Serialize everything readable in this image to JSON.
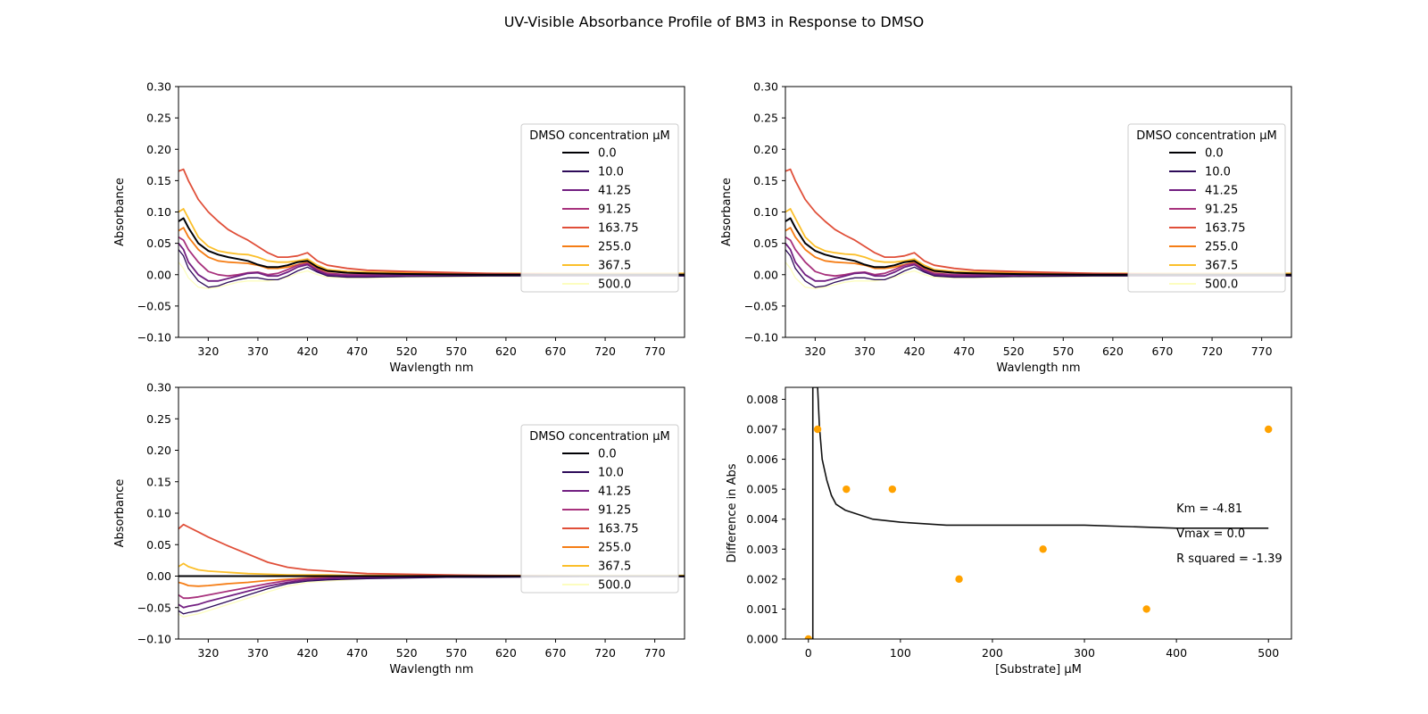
{
  "figure": {
    "title": "UV-Visible Absorbance Profile of BM3 in Response to DMSO"
  },
  "legend": {
    "title": "DMSO concentration µM",
    "entries": [
      "0.0",
      "10.0",
      "41.25",
      "91.25",
      "163.75",
      "255.0",
      "367.5",
      "500.0"
    ],
    "colors": [
      "#000004",
      "#2d0b59",
      "#721f81",
      "#a8327d",
      "#e04f39",
      "#f57d15",
      "#fbbf2a",
      "#fcfdbf"
    ]
  },
  "chart_data": [
    {
      "type": "line",
      "panel": "top-left",
      "xlabel": "Wavlength nm",
      "ylabel": "Absorbance",
      "xlim": [
        290,
        800
      ],
      "ylim": [
        -0.1,
        0.3
      ],
      "xticks": [
        "320",
        "370",
        "420",
        "470",
        "520",
        "570",
        "620",
        "670",
        "720",
        "770"
      ],
      "yticks": [
        "0.30",
        "0.25",
        "0.20",
        "0.15",
        "0.10",
        "0.05",
        "0.00",
        "−0.05",
        "−0.10"
      ],
      "legend_position": "center-right",
      "x": [
        290,
        295,
        300,
        310,
        320,
        330,
        340,
        350,
        360,
        370,
        380,
        390,
        400,
        410,
        420,
        430,
        440,
        460,
        480,
        520,
        600,
        700,
        800
      ],
      "series": [
        {
          "name": "0.0",
          "values": [
            0.085,
            0.09,
            0.075,
            0.05,
            0.038,
            0.032,
            0.028,
            0.025,
            0.022,
            0.016,
            0.012,
            0.012,
            0.015,
            0.02,
            0.022,
            0.012,
            0.006,
            0.003,
            0.002,
            0.001,
            0.0,
            0.0,
            0.0
          ]
        },
        {
          "name": "10.0",
          "values": [
            0.04,
            0.03,
            0.01,
            -0.01,
            -0.02,
            -0.018,
            -0.012,
            -0.008,
            -0.005,
            -0.005,
            -0.008,
            -0.008,
            -0.002,
            0.006,
            0.012,
            0.004,
            -0.002,
            -0.004,
            -0.004,
            -0.003,
            -0.002,
            -0.002,
            -0.002
          ]
        },
        {
          "name": "41.25",
          "values": [
            0.05,
            0.04,
            0.02,
            0.0,
            -0.01,
            -0.01,
            -0.006,
            -0.002,
            0.002,
            0.003,
            -0.002,
            -0.002,
            0.004,
            0.012,
            0.016,
            0.006,
            0.0,
            -0.002,
            -0.002,
            -0.001,
            0.0,
            0.0,
            0.0
          ]
        },
        {
          "name": "91.25",
          "values": [
            0.06,
            0.055,
            0.04,
            0.02,
            0.005,
            0.0,
            -0.002,
            0.0,
            0.003,
            0.004,
            0.0,
            0.002,
            0.008,
            0.015,
            0.018,
            0.008,
            0.002,
            0.0,
            0.0,
            0.0,
            0.0,
            0.0,
            0.0
          ]
        },
        {
          "name": "163.75",
          "values": [
            0.165,
            0.168,
            0.15,
            0.12,
            0.1,
            0.085,
            0.072,
            0.063,
            0.055,
            0.045,
            0.035,
            0.028,
            0.028,
            0.03,
            0.035,
            0.022,
            0.015,
            0.01,
            0.007,
            0.005,
            0.002,
            0.0,
            0.0
          ]
        },
        {
          "name": "255.0",
          "values": [
            0.07,
            0.075,
            0.06,
            0.04,
            0.028,
            0.022,
            0.02,
            0.019,
            0.018,
            0.015,
            0.01,
            0.01,
            0.012,
            0.016,
            0.02,
            0.01,
            0.005,
            0.003,
            0.002,
            0.002,
            0.001,
            0.0,
            0.0
          ]
        },
        {
          "name": "367.5",
          "values": [
            0.1,
            0.105,
            0.09,
            0.06,
            0.045,
            0.038,
            0.035,
            0.033,
            0.032,
            0.028,
            0.022,
            0.02,
            0.02,
            0.022,
            0.025,
            0.015,
            0.008,
            0.005,
            0.004,
            0.003,
            0.002,
            0.002,
            0.002
          ]
        },
        {
          "name": "500.0",
          "values": [
            0.02,
            0.01,
            -0.005,
            -0.02,
            -0.022,
            -0.02,
            -0.016,
            -0.012,
            -0.01,
            -0.01,
            -0.01,
            -0.008,
            -0.004,
            0.002,
            0.006,
            0.0,
            -0.004,
            -0.005,
            -0.005,
            -0.004,
            -0.003,
            -0.002,
            -0.002
          ]
        }
      ]
    },
    {
      "type": "line",
      "panel": "top-right",
      "xlabel": "Wavlength nm",
      "ylabel": "Absorbance",
      "xlim": [
        290,
        800
      ],
      "ylim": [
        -0.1,
        0.3
      ],
      "xticks": [
        "320",
        "370",
        "420",
        "470",
        "520",
        "570",
        "620",
        "670",
        "720",
        "770"
      ],
      "yticks": [
        "0.30",
        "0.25",
        "0.20",
        "0.15",
        "0.10",
        "0.05",
        "0.00",
        "−0.05",
        "−0.10"
      ],
      "legend_position": "center-right",
      "x": [
        290,
        295,
        300,
        310,
        320,
        330,
        340,
        350,
        360,
        370,
        380,
        390,
        400,
        410,
        420,
        430,
        440,
        460,
        480,
        520,
        600,
        700,
        800
      ],
      "series": [
        {
          "name": "0.0",
          "values": [
            0.085,
            0.09,
            0.075,
            0.05,
            0.038,
            0.032,
            0.028,
            0.025,
            0.022,
            0.016,
            0.012,
            0.012,
            0.015,
            0.02,
            0.022,
            0.012,
            0.006,
            0.003,
            0.002,
            0.001,
            0.0,
            0.0,
            0.0
          ]
        },
        {
          "name": "10.0",
          "values": [
            0.04,
            0.03,
            0.01,
            -0.01,
            -0.02,
            -0.018,
            -0.012,
            -0.008,
            -0.005,
            -0.005,
            -0.008,
            -0.008,
            -0.002,
            0.006,
            0.012,
            0.004,
            -0.002,
            -0.004,
            -0.004,
            -0.003,
            -0.002,
            -0.002,
            -0.002
          ]
        },
        {
          "name": "41.25",
          "values": [
            0.05,
            0.04,
            0.02,
            0.0,
            -0.01,
            -0.01,
            -0.006,
            -0.002,
            0.002,
            0.003,
            -0.002,
            -0.002,
            0.004,
            0.012,
            0.016,
            0.006,
            0.0,
            -0.002,
            -0.002,
            -0.001,
            0.0,
            0.0,
            0.0
          ]
        },
        {
          "name": "91.25",
          "values": [
            0.06,
            0.055,
            0.04,
            0.02,
            0.005,
            0.0,
            -0.002,
            0.0,
            0.003,
            0.004,
            0.0,
            0.002,
            0.008,
            0.015,
            0.018,
            0.008,
            0.002,
            0.0,
            0.0,
            0.0,
            0.0,
            0.0,
            0.0
          ]
        },
        {
          "name": "163.75",
          "values": [
            0.165,
            0.168,
            0.15,
            0.12,
            0.1,
            0.085,
            0.072,
            0.063,
            0.055,
            0.045,
            0.035,
            0.028,
            0.028,
            0.03,
            0.035,
            0.022,
            0.015,
            0.01,
            0.007,
            0.005,
            0.002,
            0.0,
            0.0
          ]
        },
        {
          "name": "255.0",
          "values": [
            0.07,
            0.075,
            0.06,
            0.04,
            0.028,
            0.022,
            0.02,
            0.019,
            0.018,
            0.015,
            0.01,
            0.01,
            0.012,
            0.016,
            0.02,
            0.01,
            0.005,
            0.003,
            0.002,
            0.002,
            0.001,
            0.0,
            0.0
          ]
        },
        {
          "name": "367.5",
          "values": [
            0.1,
            0.105,
            0.09,
            0.06,
            0.045,
            0.038,
            0.035,
            0.033,
            0.032,
            0.028,
            0.022,
            0.02,
            0.02,
            0.022,
            0.025,
            0.015,
            0.008,
            0.005,
            0.004,
            0.003,
            0.002,
            0.002,
            0.002
          ]
        },
        {
          "name": "500.0",
          "values": [
            0.02,
            0.01,
            -0.005,
            -0.02,
            -0.022,
            -0.02,
            -0.016,
            -0.012,
            -0.01,
            -0.01,
            -0.01,
            -0.008,
            -0.004,
            0.002,
            0.006,
            0.0,
            -0.004,
            -0.005,
            -0.005,
            -0.004,
            -0.003,
            -0.002,
            -0.002
          ]
        }
      ]
    },
    {
      "type": "line",
      "panel": "bottom-left",
      "xlabel": "Wavlength nm",
      "ylabel": "Absorbance",
      "xlim": [
        290,
        800
      ],
      "ylim": [
        -0.1,
        0.3
      ],
      "xticks": [
        "320",
        "370",
        "420",
        "470",
        "520",
        "570",
        "620",
        "670",
        "720",
        "770"
      ],
      "yticks": [
        "0.30",
        "0.25",
        "0.20",
        "0.15",
        "0.10",
        "0.05",
        "0.00",
        "−0.05",
        "−0.10"
      ],
      "legend_position": "center-right",
      "x": [
        290,
        295,
        300,
        310,
        320,
        340,
        360,
        380,
        400,
        420,
        440,
        460,
        480,
        520,
        560,
        600,
        700,
        800
      ],
      "series": [
        {
          "name": "0.0",
          "values": [
            0.0,
            0.0,
            0.0,
            0.0,
            0.0,
            0.0,
            0.0,
            0.0,
            0.0,
            0.0,
            0.0,
            0.0,
            0.0,
            0.0,
            0.0,
            0.0,
            0.0,
            0.0
          ]
        },
        {
          "name": "10.0",
          "values": [
            -0.055,
            -0.06,
            -0.058,
            -0.055,
            -0.05,
            -0.04,
            -0.03,
            -0.02,
            -0.012,
            -0.008,
            -0.006,
            -0.005,
            -0.004,
            -0.003,
            -0.002,
            -0.002,
            -0.001,
            -0.001
          ]
        },
        {
          "name": "41.25",
          "values": [
            -0.045,
            -0.05,
            -0.048,
            -0.045,
            -0.04,
            -0.032,
            -0.024,
            -0.016,
            -0.01,
            -0.006,
            -0.004,
            -0.003,
            -0.003,
            -0.002,
            -0.001,
            -0.001,
            0.0,
            0.0
          ]
        },
        {
          "name": "91.25",
          "values": [
            -0.03,
            -0.035,
            -0.035,
            -0.033,
            -0.03,
            -0.024,
            -0.018,
            -0.012,
            -0.007,
            -0.004,
            -0.003,
            -0.002,
            -0.002,
            -0.001,
            -0.001,
            0.0,
            0.0,
            0.0
          ]
        },
        {
          "name": "163.75",
          "values": [
            0.075,
            0.082,
            0.078,
            0.07,
            0.062,
            0.048,
            0.035,
            0.022,
            0.014,
            0.01,
            0.008,
            0.006,
            0.004,
            0.003,
            0.002,
            0.001,
            0.0,
            0.0
          ]
        },
        {
          "name": "255.0",
          "values": [
            -0.01,
            -0.012,
            -0.015,
            -0.016,
            -0.015,
            -0.012,
            -0.01,
            -0.007,
            -0.005,
            -0.003,
            -0.002,
            -0.002,
            -0.001,
            -0.001,
            0.0,
            0.0,
            0.0,
            0.0
          ]
        },
        {
          "name": "367.5",
          "values": [
            0.015,
            0.02,
            0.015,
            0.01,
            0.008,
            0.006,
            0.004,
            0.003,
            0.002,
            0.002,
            0.002,
            0.001,
            0.001,
            0.001,
            0.001,
            0.001,
            0.001,
            0.001
          ]
        },
        {
          "name": "500.0",
          "values": [
            -0.06,
            -0.065,
            -0.063,
            -0.06,
            -0.055,
            -0.045,
            -0.035,
            -0.025,
            -0.016,
            -0.01,
            -0.008,
            -0.006,
            -0.004,
            -0.003,
            -0.002,
            -0.001,
            0.0,
            0.0
          ]
        }
      ]
    },
    {
      "type": "scatter",
      "panel": "bottom-right",
      "xlabel": "[Substrate] µM",
      "ylabel": "Difference in Abs",
      "xlim": [
        -25,
        525
      ],
      "ylim": [
        0,
        0.0084
      ],
      "xticks": [
        "0",
        "100",
        "200",
        "300",
        "400",
        "500"
      ],
      "yticks": [
        "0.008",
        "0.007",
        "0.006",
        "0.005",
        "0.004",
        "0.003",
        "0.002",
        "0.001",
        "0.000"
      ],
      "points": {
        "x": [
          0.0,
          10.0,
          41.25,
          91.25,
          163.75,
          255.0,
          367.5,
          500.0
        ],
        "y": [
          0.0,
          0.007,
          0.005,
          0.005,
          0.002,
          0.003,
          0.001,
          0.007
        ],
        "color": "#ffa200"
      },
      "fit": {
        "x": [
          4.81,
          5.0,
          5.5,
          6.0,
          7.0,
          8.0,
          10.0,
          12.0,
          15.0,
          20.0,
          25.0,
          30.0,
          40.0,
          50.0,
          70.0,
          100.0,
          150.0,
          200.0,
          300.0,
          400.0,
          500.0
        ],
        "y": [
          0.0084,
          0.0084,
          0.0084,
          0.0084,
          0.0084,
          0.0084,
          0.0084,
          0.0071,
          0.006,
          0.0053,
          0.0048,
          0.0045,
          0.0043,
          0.0042,
          0.004,
          0.0039,
          0.0038,
          0.0038,
          0.0038,
          0.0037,
          0.0037
        ],
        "color": "#111111"
      },
      "annotations": [
        "Km = -4.81",
        "Vmax = 0.0",
        "R squared = -1.39"
      ]
    }
  ]
}
